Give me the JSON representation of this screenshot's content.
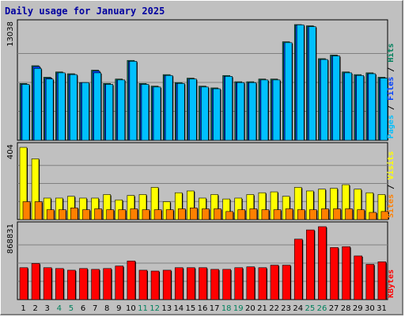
{
  "title": "Daily usage for January 2025",
  "colors": {
    "hits": "#00805c",
    "files": "#0040ff",
    "pages": "#00c0ff",
    "visits": "#ff8000",
    "sites": "#ffff00",
    "kbytes": "#ff0000",
    "weekend": "#00805c",
    "weekday": "#000000"
  },
  "chart_data": {
    "type": "bar",
    "categories": [
      "1",
      "2",
      "3",
      "4",
      "5",
      "6",
      "7",
      "8",
      "9",
      "10",
      "11",
      "12",
      "13",
      "14",
      "15",
      "16",
      "17",
      "18",
      "19",
      "20",
      "21",
      "22",
      "23",
      "24",
      "25",
      "26",
      "27",
      "28",
      "29",
      "30",
      "31"
    ],
    "weekend_days": [
      "4",
      "5",
      "11",
      "12",
      "18",
      "19",
      "25",
      "26"
    ],
    "panels": [
      {
        "id": "top",
        "ymax_label": "13038",
        "ymax": 13038,
        "legend": [
          {
            "text": "Pages",
            "color": "#00c0ff"
          },
          {
            "text": " / ",
            "color": "#000000"
          },
          {
            "text": "Files",
            "color": "#0040ff"
          },
          {
            "text": " / ",
            "color": "#000000"
          },
          {
            "text": "Hits",
            "color": "#00805c"
          }
        ],
        "series": [
          {
            "name": "Hits",
            "color": "#00805c",
            "values": [
              6400,
              8400,
              7100,
              7700,
              7500,
              6500,
              7900,
              6400,
              6900,
              9000,
              6400,
              6100,
              7400,
              6500,
              7000,
              6100,
              5900,
              7300,
              6600,
              6600,
              6900,
              6900,
              11100,
              13038,
              12900,
              9200,
              9600,
              7700,
              7400,
              7600,
              7100
            ]
          },
          {
            "name": "Files",
            "color": "#0040ff",
            "values": [
              6300,
              8300,
              7000,
              7600,
              7400,
              6500,
              7800,
              6300,
              6800,
              8900,
              6300,
              6000,
              7300,
              6400,
              6900,
              6000,
              5800,
              7200,
              6500,
              6500,
              6800,
              6800,
              11000,
              12950,
              12800,
              9100,
              9500,
              7600,
              7300,
              7500,
              7000
            ]
          },
          {
            "name": "Pages",
            "color": "#00c0ff",
            "values": [
              6300,
              8100,
              6900,
              7600,
              7400,
              6500,
              7600,
              6300,
              6800,
              8900,
              6300,
              6000,
              7300,
              6400,
              6900,
              6000,
              5800,
              7200,
              6500,
              6500,
              6800,
              6800,
              11000,
              13000,
              12800,
              9100,
              9500,
              7600,
              7300,
              7500,
              7000
            ]
          }
        ]
      },
      {
        "id": "mid",
        "ymax_label": "404",
        "ymax": 404,
        "legend": [
          {
            "text": "Sites",
            "color": "#ff8000"
          },
          {
            "text": " / ",
            "color": "#000000"
          },
          {
            "text": "Visits",
            "color": "#ffff00"
          }
        ],
        "series": [
          {
            "name": "Visits",
            "color": "#ffff00",
            "values": [
              404,
              340,
              120,
              120,
              130,
              120,
              120,
              140,
              110,
              135,
              140,
              180,
              100,
              150,
              160,
              120,
              140,
              115,
              120,
              140,
              150,
              155,
              130,
              180,
              160,
              170,
              175,
              195,
              170,
              150,
              140
            ]
          },
          {
            "name": "Sites",
            "color": "#ff8000",
            "values": [
              100,
              100,
              55,
              55,
              65,
              55,
              60,
              55,
              55,
              60,
              55,
              55,
              55,
              60,
              65,
              60,
              60,
              45,
              55,
              60,
              55,
              55,
              60,
              55,
              55,
              60,
              60,
              60,
              55,
              40,
              45
            ]
          }
        ]
      },
      {
        "id": "bot",
        "ymax_label": "868831",
        "ymax": 868831,
        "legend": [
          {
            "text": "KBytes",
            "color": "#ff0000"
          }
        ],
        "series": [
          {
            "name": "KBytes",
            "color": "#ff0000",
            "values": [
              380000,
              430000,
              380000,
              370000,
              350000,
              370000,
              360000,
              370000,
              400000,
              460000,
              350000,
              340000,
              350000,
              380000,
              380000,
              380000,
              360000,
              360000,
              380000,
              390000,
              380000,
              410000,
              410000,
              720000,
              830000,
              868831,
              620000,
              630000,
              520000,
              420000,
              450000
            ]
          }
        ]
      }
    ]
  }
}
